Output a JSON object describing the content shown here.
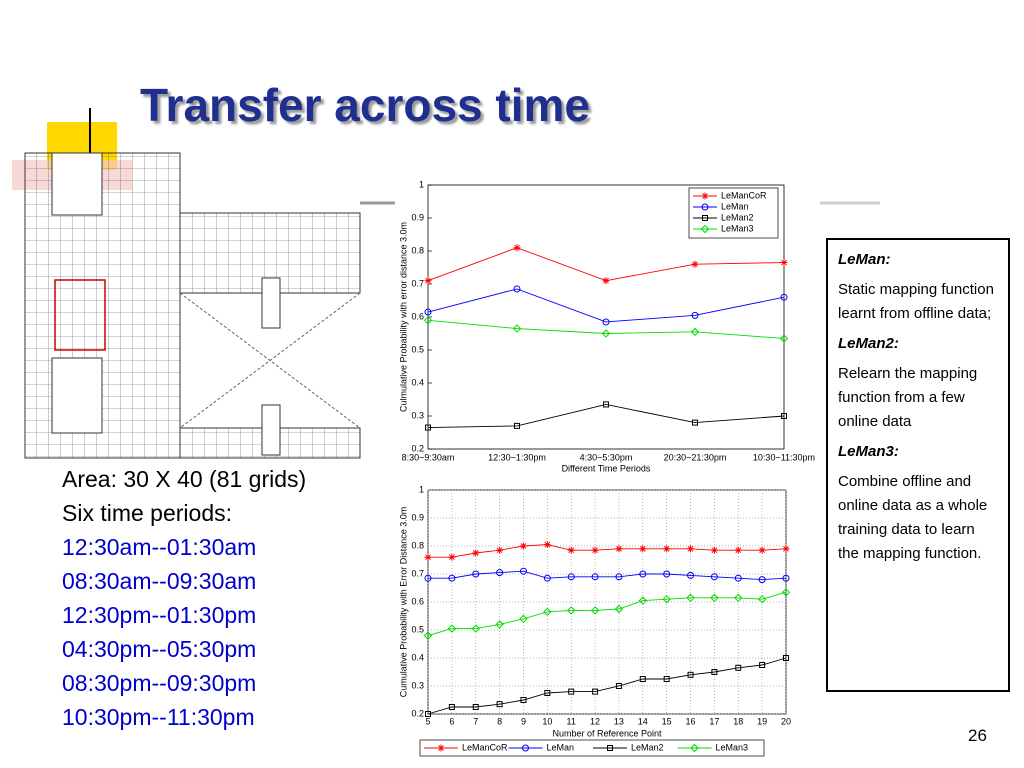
{
  "slide": {
    "title": "Transfer across time",
    "facts": [
      "Area: 30 X 40 (81 grids)",
      "Six time periods:"
    ],
    "periods": [
      "12:30am--01:30am",
      "08:30am--09:30am",
      "12:30pm--01:30pm",
      "04:30pm--05:30pm",
      "08:30pm--09:30pm",
      "10:30pm--11:30pm"
    ],
    "notes": [
      {
        "term": "LeMan:",
        "text": "Static mapping function learnt from offline data;"
      },
      {
        "term": "LeMan2:",
        "text": "Relearn the mapping function from a few online data"
      },
      {
        "term": "LeMan3:",
        "text": "Combine offline and online data as a whole training data to learn the mapping function."
      }
    ],
    "page_number": "26"
  },
  "chart_data": [
    {
      "type": "line",
      "categories": [
        "8:30~9:30am",
        "12:30~1:30pm",
        "4:30~5:30pm",
        "20:30~21:30pm",
        "10:30~11:30pm"
      ],
      "x_label": "Different Time Periods",
      "y_label": "Culmulative Probability with error distance 3.0m",
      "ylim": [
        0.2,
        1
      ],
      "yticks": [
        0.2,
        0.3,
        0.4,
        0.5,
        0.6,
        0.7,
        0.8,
        0.9,
        1
      ],
      "grid": false,
      "legend": "upper right",
      "series": [
        {
          "name": "LeManCoR",
          "color": "#ff0000",
          "marker": "star",
          "values": [
            0.71,
            0.81,
            0.71,
            0.76,
            0.765
          ]
        },
        {
          "name": "LeMan",
          "color": "#0000ff",
          "marker": "circle",
          "values": [
            0.615,
            0.685,
            0.585,
            0.605,
            0.66
          ]
        },
        {
          "name": "LeMan2",
          "color": "#000000",
          "marker": "square",
          "values": [
            0.265,
            0.27,
            0.335,
            0.28,
            0.3
          ]
        },
        {
          "name": "LeMan3",
          "color": "#00dd00",
          "marker": "diamond",
          "values": [
            0.59,
            0.565,
            0.55,
            0.555,
            0.535
          ]
        }
      ]
    },
    {
      "type": "line",
      "x": [
        5,
        6,
        7,
        8,
        9,
        10,
        11,
        12,
        13,
        14,
        15,
        16,
        17,
        18,
        19,
        20
      ],
      "x_label": "Number of Reference Point",
      "y_label": "Cumulative Probability with Error Distance 3.0m",
      "xlim": [
        5,
        20
      ],
      "xticks": [
        5,
        6,
        7,
        8,
        9,
        10,
        11,
        12,
        13,
        14,
        15,
        16,
        17,
        18,
        19,
        20
      ],
      "ylim": [
        0.2,
        1
      ],
      "yticks": [
        0.2,
        0.3,
        0.4,
        0.5,
        0.6,
        0.7,
        0.8,
        0.9,
        1
      ],
      "grid": true,
      "legend": "below",
      "series": [
        {
          "name": "LeManCoR",
          "color": "#ff0000",
          "marker": "star",
          "values": [
            0.76,
            0.76,
            0.775,
            0.785,
            0.8,
            0.805,
            0.785,
            0.785,
            0.79,
            0.79,
            0.79,
            0.79,
            0.785,
            0.785,
            0.785,
            0.79
          ]
        },
        {
          "name": "LeMan",
          "color": "#0000ff",
          "marker": "circle",
          "values": [
            0.685,
            0.685,
            0.7,
            0.705,
            0.71,
            0.685,
            0.69,
            0.69,
            0.69,
            0.7,
            0.7,
            0.695,
            0.69,
            0.685,
            0.68,
            0.685
          ]
        },
        {
          "name": "LeMan2",
          "color": "#000000",
          "marker": "square",
          "values": [
            0.2,
            0.225,
            0.225,
            0.235,
            0.25,
            0.275,
            0.28,
            0.28,
            0.3,
            0.325,
            0.325,
            0.34,
            0.35,
            0.365,
            0.375,
            0.4
          ]
        },
        {
          "name": "LeMan3",
          "color": "#00dd00",
          "marker": "diamond",
          "values": [
            0.48,
            0.505,
            0.505,
            0.52,
            0.54,
            0.565,
            0.57,
            0.57,
            0.575,
            0.605,
            0.61,
            0.615,
            0.615,
            0.615,
            0.61,
            0.635
          ]
        }
      ]
    }
  ]
}
